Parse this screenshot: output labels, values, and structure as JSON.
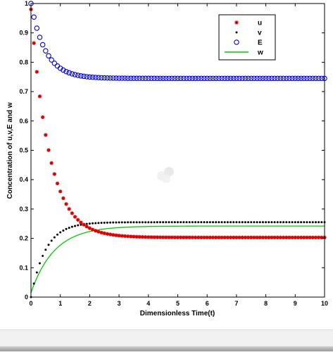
{
  "chart_data": {
    "type": "scatter",
    "xlabel": "Dimensionless Time(t)",
    "ylabel": "Concentration of u,v,E and w",
    "xlim": [
      0,
      10
    ],
    "ylim": [
      0,
      1
    ],
    "x_ticks": [
      "0",
      "1",
      "2",
      "3",
      "4",
      "5",
      "6",
      "7",
      "8",
      "9",
      "10"
    ],
    "y_ticks": [
      "0",
      "0.1",
      "0.2",
      "0.3",
      "0.4",
      "0.5",
      "0.6",
      "0.7",
      "0.8",
      "0.9",
      "1"
    ],
    "grid": false,
    "legend_position": "top-right",
    "series": [
      {
        "name": "u",
        "marker": "star",
        "color": "#dd0000",
        "model": {
          "form": "exp_decay",
          "y0": 0.98,
          "y_inf": 0.203,
          "rate": 1.6
        },
        "x": [
          0,
          0.1,
          0.2,
          0.3,
          0.4,
          0.5,
          0.6,
          0.8,
          1.0,
          1.5,
          2.0,
          2.5,
          3.0,
          4.0,
          5.0,
          6.0,
          7.0,
          8.0,
          9.0,
          10.0
        ],
        "values": [
          0.98,
          0.85,
          0.75,
          0.66,
          0.6,
          0.55,
          0.51,
          0.43,
          0.36,
          0.27,
          0.23,
          0.215,
          0.209,
          0.205,
          0.204,
          0.203,
          0.203,
          0.203,
          0.203,
          0.203
        ]
      },
      {
        "name": "v",
        "marker": "dot",
        "color": "#000000",
        "model": {
          "form": "exp_rise",
          "y0": 0.0,
          "y_inf": 0.255,
          "rate": 2.0
        },
        "x": [
          0,
          0.1,
          0.2,
          0.3,
          0.5,
          1.0,
          1.5,
          2.0,
          3.0,
          4.0,
          5.0,
          6.0,
          7.0,
          8.0,
          9.0,
          10.0
        ],
        "values": [
          0.0,
          0.05,
          0.1,
          0.13,
          0.17,
          0.22,
          0.24,
          0.25,
          0.255,
          0.255,
          0.255,
          0.255,
          0.255,
          0.255,
          0.255,
          0.255
        ]
      },
      {
        "name": "E",
        "marker": "circle",
        "color": "#0000dd",
        "model": {
          "form": "exp_decay",
          "y0": 1.0,
          "y_inf": 0.745,
          "rate": 2.0
        },
        "x": [
          0,
          0.1,
          0.2,
          0.3,
          0.5,
          1.0,
          1.5,
          2.0,
          3.0,
          4.0,
          5.0,
          6.0,
          7.0,
          8.0,
          9.0,
          10.0
        ],
        "values": [
          1.0,
          0.95,
          0.9,
          0.86,
          0.82,
          0.78,
          0.76,
          0.75,
          0.745,
          0.745,
          0.745,
          0.745,
          0.745,
          0.745,
          0.745,
          0.745
        ]
      },
      {
        "name": "w",
        "marker": "line",
        "color": "#00cc00",
        "model": {
          "form": "exp_rise",
          "y0": 0.015,
          "y_inf": 0.242,
          "rate": 1.25
        },
        "x": [
          0,
          0.5,
          1.0,
          1.5,
          2.0,
          2.5,
          3.0,
          4.0,
          5.0,
          6.0,
          7.0,
          8.0,
          9.0,
          10.0
        ],
        "values": [
          0.015,
          0.1,
          0.16,
          0.2,
          0.22,
          0.23,
          0.237,
          0.241,
          0.242,
          0.242,
          0.242,
          0.242,
          0.242,
          0.242
        ]
      }
    ]
  }
}
